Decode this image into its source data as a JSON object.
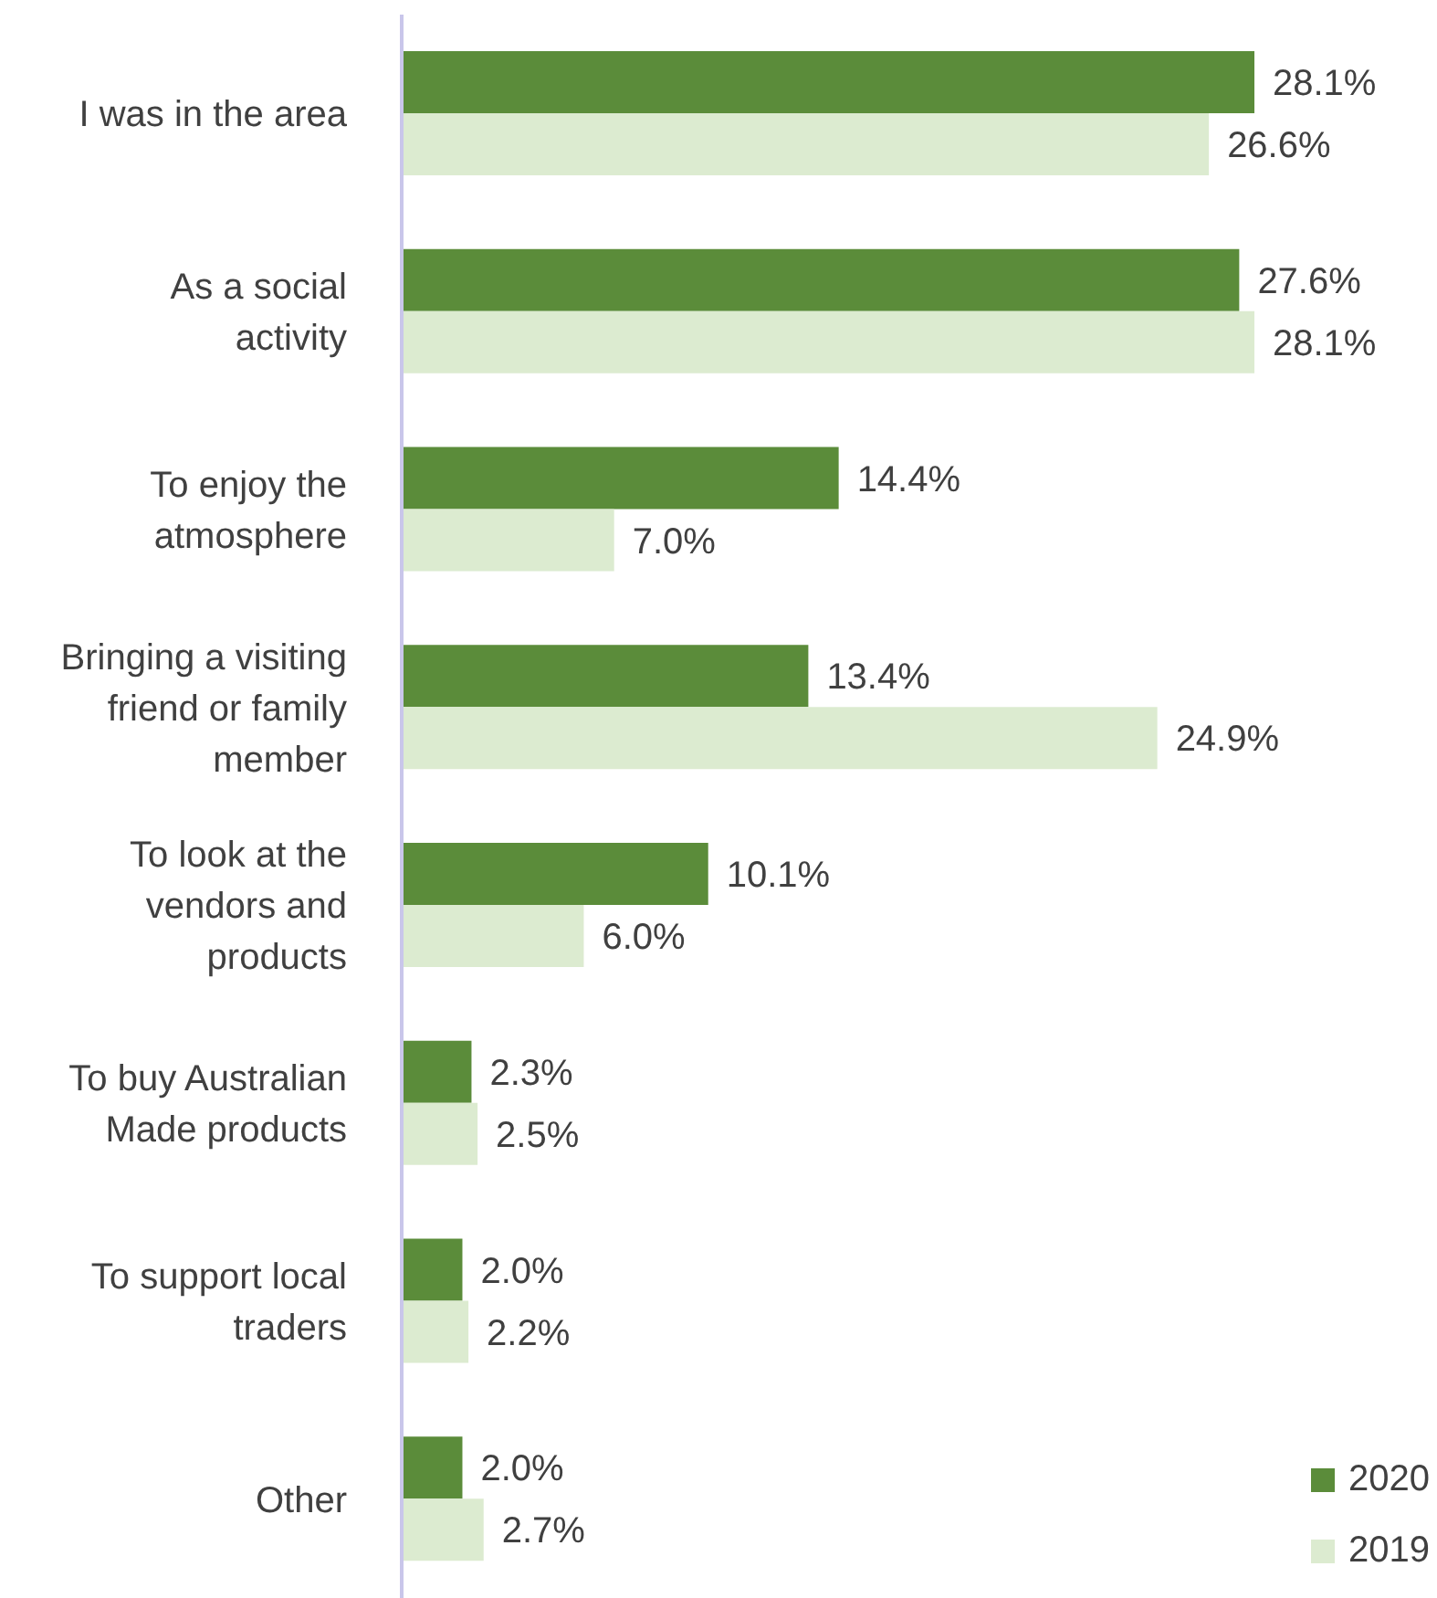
{
  "chart_data": {
    "type": "bar",
    "orientation": "horizontal",
    "categories": [
      "I was in the area",
      "As a social activity",
      "To enjoy the atmosphere",
      "Bringing a visiting friend or family member",
      "To look at the vendors and products",
      "To buy Australian Made products",
      "To support local traders",
      "Other"
    ],
    "series": [
      {
        "name": "2020",
        "color": "#5b8c3a",
        "values": [
          28.1,
          27.6,
          14.4,
          13.4,
          10.1,
          2.3,
          2.0,
          2.0
        ],
        "value_labels": [
          "28.1%",
          "27.6%",
          "14.4%",
          "13.4%",
          "10.1%",
          "2.3%",
          "2.0%",
          "2.0%"
        ]
      },
      {
        "name": "2019",
        "color": "#dcebd0",
        "values": [
          26.6,
          28.1,
          7.0,
          24.9,
          6.0,
          2.5,
          2.2,
          2.7
        ],
        "value_labels": [
          "26.6%",
          "28.1%",
          "7.0%",
          "24.9%",
          "6.0%",
          "2.5%",
          "2.2%",
          "2.7%"
        ]
      }
    ],
    "legend": "bottom right",
    "grid": false
  }
}
